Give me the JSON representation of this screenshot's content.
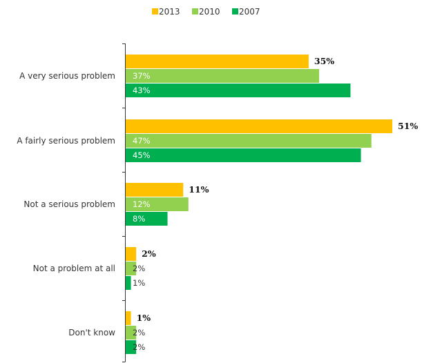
{
  "chart_data": {
    "type": "bar",
    "orientation": "horizontal",
    "categories": [
      "A very serious problem",
      "A fairly serious problem",
      "Not a serious problem",
      "Not a problem at all",
      "Don't know"
    ],
    "series": [
      {
        "name": "2013",
        "values": [
          35,
          51,
          11,
          2,
          1
        ],
        "color": "#FFC000",
        "labels": [
          "35%",
          "51%",
          "11%",
          "2%",
          "1%"
        ]
      },
      {
        "name": "2010",
        "values": [
          37,
          47,
          12,
          2,
          2
        ],
        "color": "#92D050",
        "labels": [
          "37%",
          "47%",
          "12%",
          "2%",
          "2%"
        ]
      },
      {
        "name": "2007",
        "values": [
          43,
          45,
          8,
          1,
          2
        ],
        "color": "#00B050",
        "labels": [
          "43%",
          "45%",
          "8%",
          "1%",
          "2%"
        ]
      }
    ],
    "xlim": [
      0,
      55
    ],
    "legend_position": "top-center",
    "grid": false
  }
}
